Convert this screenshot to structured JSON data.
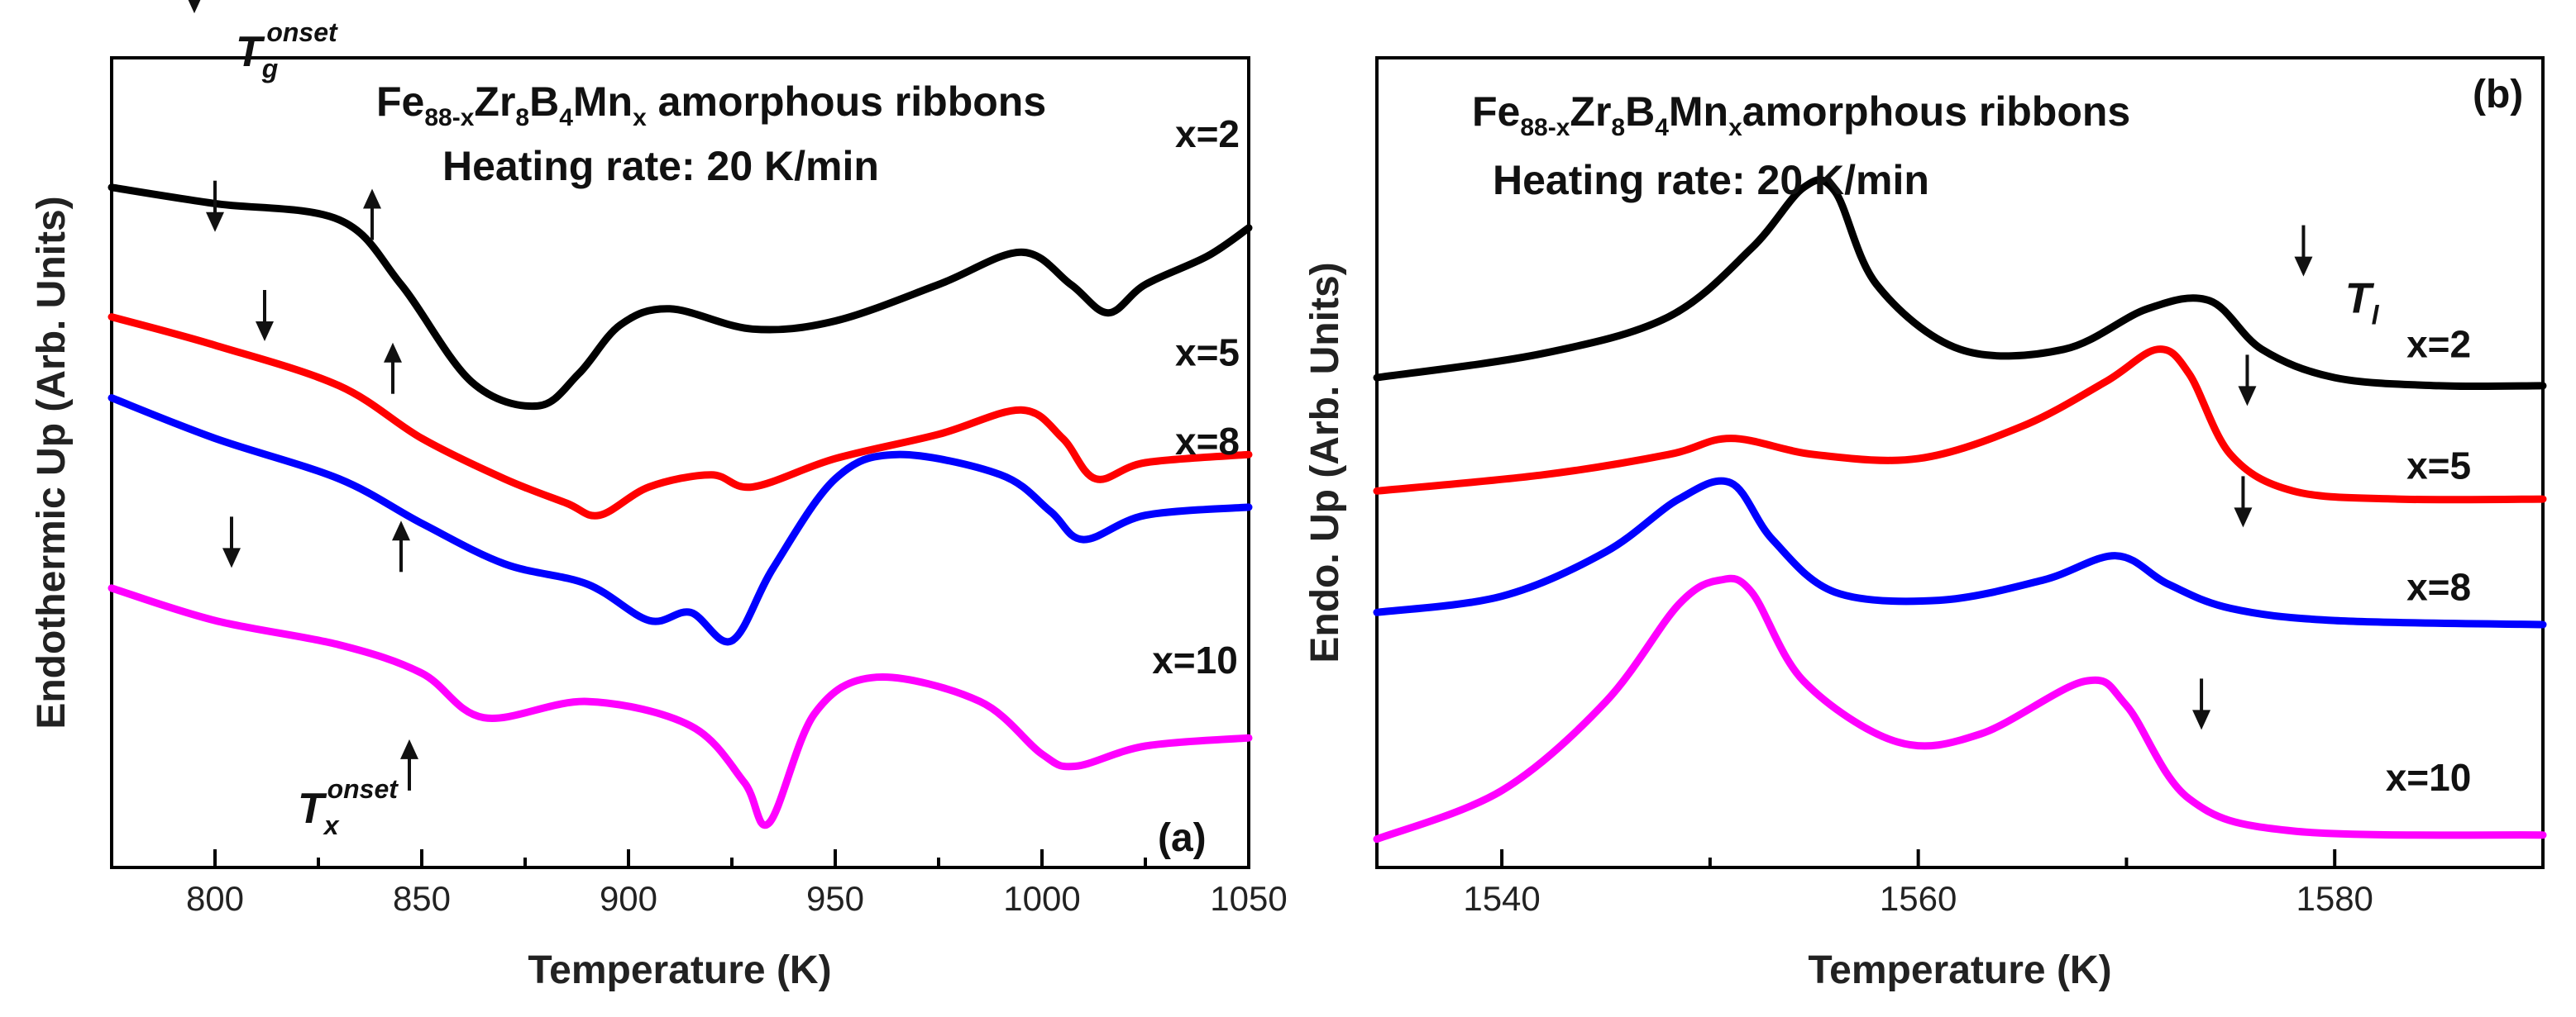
{
  "chart_data": [
    {
      "type": "line",
      "panel": "(a)",
      "title_line1": {
        "base": "Fe",
        "s1": "88-x",
        "b2": "Zr",
        "s2": "8",
        "b3": "B",
        "s3": "4",
        "b4": "Mn",
        "s4": "x",
        "tail": " amorphous ribbons"
      },
      "title_line2": "Heating rate: 20 K/min",
      "xlabel": "Temperature (K)",
      "ylabel": "Endothermic Up (Arb. Units)",
      "xlim": [
        775,
        1050
      ],
      "ylim": [
        0,
        10
      ],
      "xticks": [
        800,
        850,
        900,
        950,
        1000,
        1050
      ],
      "xtick_labels": [
        "800",
        "850",
        "900",
        "950",
        "1000",
        "1050"
      ],
      "series": [
        {
          "name": "x=2",
          "color": "#000000",
          "x": [
            775,
            800,
            830,
            845,
            862,
            878,
            888,
            898,
            910,
            930,
            950,
            975,
            995,
            1007,
            1016,
            1025,
            1040,
            1050
          ],
          "y": [
            8.4,
            8.2,
            8.0,
            7.2,
            6.0,
            5.7,
            6.1,
            6.7,
            6.9,
            6.65,
            6.75,
            7.2,
            7.6,
            7.2,
            6.85,
            7.2,
            7.55,
            7.9
          ]
        },
        {
          "name": "x=5",
          "color": "#ff0000",
          "x": [
            775,
            800,
            830,
            850,
            870,
            885,
            893,
            905,
            920,
            930,
            950,
            975,
            995,
            1005,
            1013,
            1025,
            1050
          ],
          "y": [
            6.8,
            6.45,
            5.95,
            5.3,
            4.8,
            4.5,
            4.35,
            4.7,
            4.85,
            4.7,
            5.05,
            5.35,
            5.65,
            5.3,
            4.8,
            5.0,
            5.1
          ]
        },
        {
          "name": "x=8",
          "color": "#0000ff",
          "x": [
            775,
            800,
            830,
            850,
            870,
            890,
            905,
            915,
            925,
            935,
            950,
            965,
            990,
            1002,
            1010,
            1025,
            1050
          ],
          "y": [
            5.8,
            5.3,
            4.8,
            4.25,
            3.75,
            3.5,
            3.05,
            3.15,
            2.8,
            3.7,
            4.8,
            5.1,
            4.85,
            4.4,
            4.05,
            4.35,
            4.45
          ]
        },
        {
          "name": "x=10",
          "color": "#ff00ff",
          "x": [
            775,
            800,
            830,
            850,
            865,
            890,
            915,
            928,
            934,
            945,
            960,
            985,
            1000,
            1008,
            1025,
            1050
          ],
          "y": [
            3.45,
            3.05,
            2.75,
            2.4,
            1.85,
            2.05,
            1.75,
            1.05,
            0.55,
            1.9,
            2.35,
            2.05,
            1.4,
            1.25,
            1.5,
            1.6
          ]
        }
      ],
      "series_labels": [
        {
          "text": "x=2",
          "x": 1040,
          "y": 8.9
        },
        {
          "text": "x=5",
          "x": 1040,
          "y": 6.2
        },
        {
          "text": "x=8",
          "x": 1040,
          "y": 5.1
        },
        {
          "text": "x=10",
          "x": 1037,
          "y": 2.4
        }
      ],
      "annotations": {
        "tg": {
          "symbol": "T",
          "sub": "g",
          "sup": "onset",
          "x": 805,
          "y": 9.9
        },
        "tx": {
          "symbol": "T",
          "sub": "x",
          "sup": "onset",
          "x": 820,
          "y": 0.55
        }
      },
      "arrows": [
        {
          "dir": "down",
          "x": 795,
          "y": 10.55
        },
        {
          "dir": "up",
          "x": 838,
          "y": 7.75
        },
        {
          "dir": "down",
          "x": 800,
          "y": 7.85
        },
        {
          "dir": "up",
          "x": 843,
          "y": 5.85
        },
        {
          "dir": "down",
          "x": 812,
          "y": 6.5
        },
        {
          "dir": "up",
          "x": 845,
          "y": 3.65
        },
        {
          "dir": "down",
          "x": 804,
          "y": 3.7
        },
        {
          "dir": "up",
          "x": 847,
          "y": 0.95
        }
      ]
    },
    {
      "type": "line",
      "panel": "(b)",
      "title_line1": {
        "base": "Fe",
        "s1": "88-x",
        "b2": "Zr",
        "s2": "8",
        "b3": "B",
        "s3": "4",
        "b4": "Mn",
        "s4": "x",
        "tail": "amorphous ribbons"
      },
      "title_line2": "Heating rate: 20 K/min",
      "xlabel": "Temperature (K)",
      "ylabel": "Endo. Up (Arb. Units)",
      "xlim": [
        1534,
        1590
      ],
      "ylim": [
        0,
        10
      ],
      "xticks": [
        1540,
        1560,
        1580
      ],
      "xtick_labels": [
        "1540",
        "1560",
        "1580"
      ],
      "series": [
        {
          "name": "x=2",
          "color": "#000000",
          "x": [
            1534,
            1542,
            1548,
            1552,
            1554.5,
            1556,
            1558,
            1562,
            1567,
            1571,
            1574,
            1576.5,
            1580,
            1585,
            1590
          ],
          "y": [
            6.05,
            6.35,
            6.8,
            7.65,
            8.4,
            8.35,
            7.2,
            6.4,
            6.4,
            6.9,
            7.0,
            6.4,
            6.05,
            5.95,
            5.95
          ]
        },
        {
          "name": "x=5",
          "color": "#ff0000",
          "x": [
            1534,
            1542,
            1548,
            1551,
            1555,
            1560,
            1565,
            1569,
            1571.5,
            1573,
            1575,
            1578,
            1583,
            1590
          ],
          "y": [
            4.65,
            4.85,
            5.1,
            5.3,
            5.1,
            5.05,
            5.45,
            6.0,
            6.4,
            6.1,
            5.1,
            4.65,
            4.55,
            4.55
          ]
        },
        {
          "name": "x=8",
          "color": "#0000ff",
          "x": [
            1534,
            1540,
            1545,
            1548.5,
            1551,
            1553,
            1556,
            1561,
            1566,
            1569.5,
            1572,
            1575,
            1580,
            1590
          ],
          "y": [
            3.15,
            3.35,
            3.9,
            4.55,
            4.75,
            4.05,
            3.4,
            3.3,
            3.55,
            3.85,
            3.5,
            3.2,
            3.05,
            3.0
          ]
        },
        {
          "name": "x=10",
          "color": "#ff00ff",
          "x": [
            1534,
            1540,
            1545,
            1548.5,
            1550.5,
            1552,
            1554.5,
            1559,
            1563,
            1568,
            1570,
            1573,
            1578,
            1590
          ],
          "y": [
            0.35,
            0.95,
            2.05,
            3.25,
            3.55,
            3.4,
            2.3,
            1.55,
            1.65,
            2.3,
            2.0,
            0.85,
            0.45,
            0.4
          ]
        }
      ],
      "series_labels": [
        {
          "text": "x=2",
          "x": 1585,
          "y": 6.3
        },
        {
          "text": "x=5",
          "x": 1585,
          "y": 4.8
        },
        {
          "text": "x=8",
          "x": 1585,
          "y": 3.3
        },
        {
          "text": "x=10",
          "x": 1584.5,
          "y": 0.95
        }
      ],
      "annotations": {
        "tl": {
          "symbol": "T",
          "sub": "l",
          "x": 1580.5,
          "y": 6.85
        }
      },
      "arrows": [
        {
          "dir": "down",
          "x": 1578.5,
          "y": 7.3
        },
        {
          "dir": "down",
          "x": 1575.8,
          "y": 5.7
        },
        {
          "dir": "down",
          "x": 1575.6,
          "y": 4.2
        },
        {
          "dir": "down",
          "x": 1573.6,
          "y": 1.7
        }
      ],
      "panel_tag_pos": "top-right"
    }
  ]
}
